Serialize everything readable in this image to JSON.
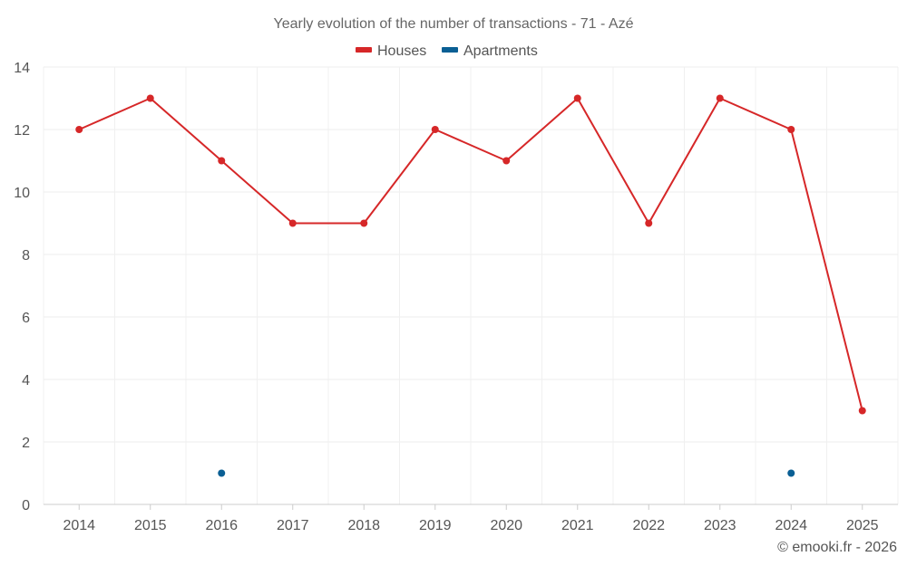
{
  "chart_data": {
    "type": "line",
    "title": "Yearly evolution of the number of transactions - 71 - Azé",
    "xlabel": "",
    "ylabel": "",
    "categories": [
      "2014",
      "2015",
      "2016",
      "2017",
      "2018",
      "2019",
      "2020",
      "2021",
      "2022",
      "2023",
      "2024",
      "2025"
    ],
    "ylim": [
      0,
      14
    ],
    "yticks": [
      0,
      2,
      4,
      6,
      8,
      10,
      12,
      14
    ],
    "grid": true,
    "legend_position": "top-center",
    "series": [
      {
        "name": "Houses",
        "color": "#d62728",
        "mode": "line+markers",
        "values": [
          12,
          13,
          11,
          9,
          9,
          12,
          11,
          13,
          9,
          13,
          12,
          3
        ]
      },
      {
        "name": "Apartments",
        "color": "#0a5f94",
        "mode": "markers",
        "values": [
          null,
          null,
          1,
          null,
          null,
          null,
          null,
          null,
          null,
          null,
          1,
          null
        ]
      }
    ]
  },
  "credit": "© emooki.fr - 2026"
}
